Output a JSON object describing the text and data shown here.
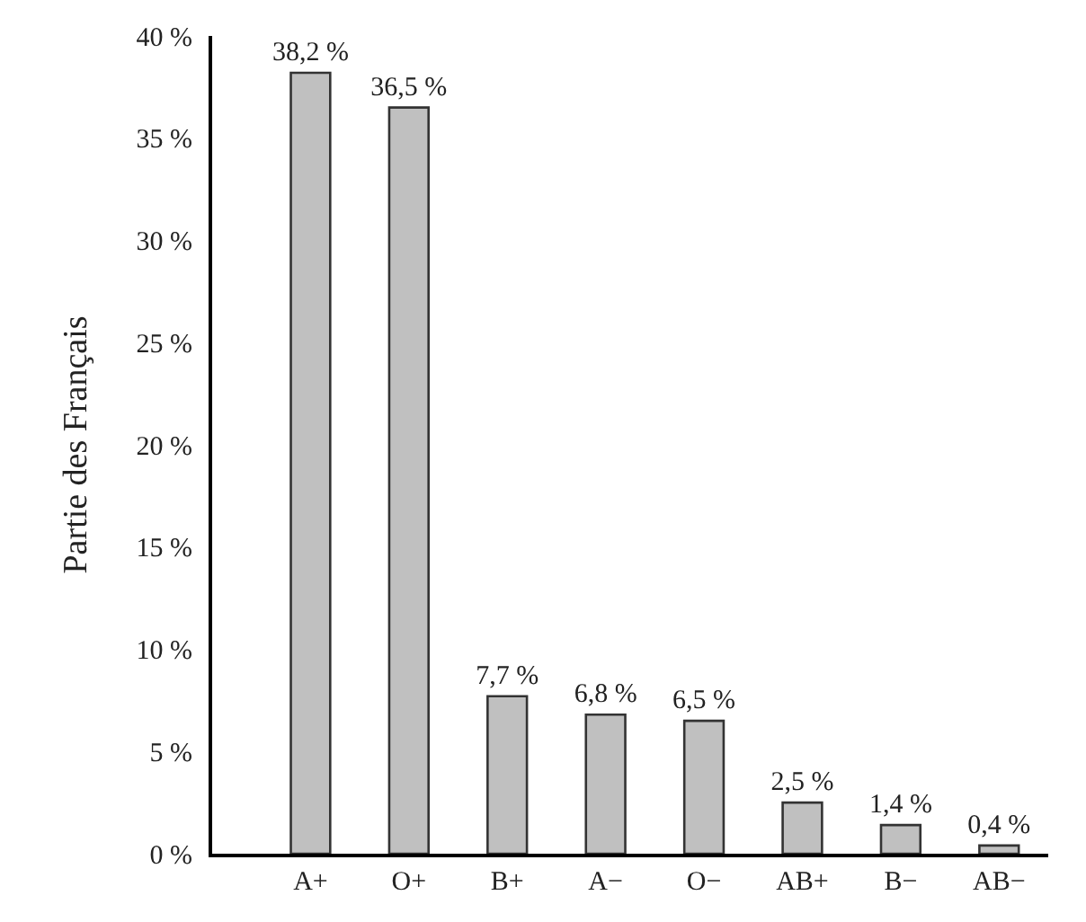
{
  "chart_data": {
    "type": "bar",
    "ylabel": "Partie des Français",
    "categories": [
      "A+",
      "O+",
      "B+",
      "A−",
      "O−",
      "AB+",
      "B−",
      "AB−"
    ],
    "values": [
      38.2,
      36.5,
      7.7,
      6.8,
      6.5,
      2.5,
      1.4,
      0.4
    ],
    "value_labels": [
      "38,2 %",
      "36,5 %",
      "7,7 %",
      "6,8 %",
      "6,5 %",
      "2,5 %",
      "1,4 %",
      "0,4 %"
    ],
    "color": "#c0c0c0",
    "ylim": [
      0,
      40
    ],
    "yticks": [
      {
        "value": 0,
        "label": "0 %"
      },
      {
        "value": 5,
        "label": "5 %"
      },
      {
        "value": 10,
        "label": "10 %"
      },
      {
        "value": 15,
        "label": "15 %"
      },
      {
        "value": 20,
        "label": "20 %"
      },
      {
        "value": 25,
        "label": "25 %"
      },
      {
        "value": 30,
        "label": "30 %"
      },
      {
        "value": 35,
        "label": "35 %"
      },
      {
        "value": 40,
        "label": "40 %"
      }
    ]
  }
}
